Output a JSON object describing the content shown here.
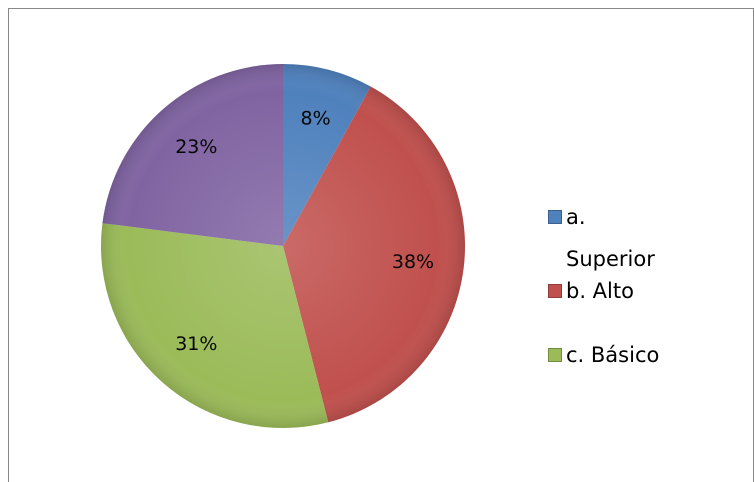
{
  "chart_data": {
    "type": "pie",
    "categories": [
      "a. Superior",
      "b. Alto",
      "c. Básico",
      null
    ],
    "values": [
      8,
      38,
      31,
      23
    ],
    "value_labels": [
      "8%",
      "38%",
      "31%",
      "23%"
    ],
    "colors": [
      "#4f81bd",
      "#c0504d",
      "#9bbb59",
      "#8064a2"
    ],
    "legend": "right"
  }
}
